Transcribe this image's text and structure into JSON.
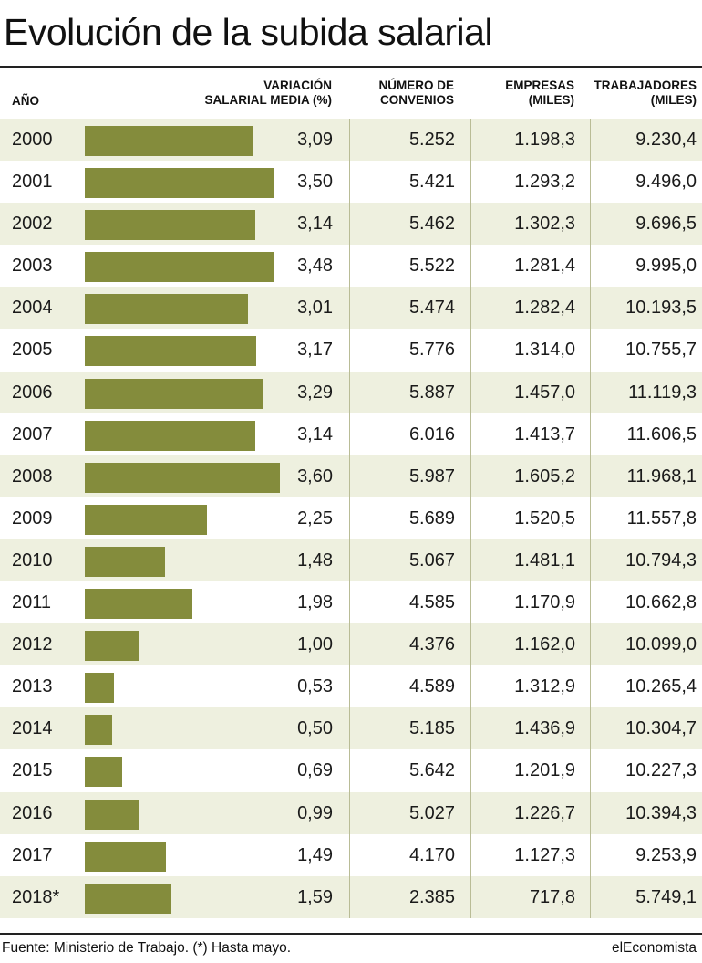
{
  "title": "Evolución de la subida salarial",
  "headers": {
    "year": "AÑO",
    "variation_line1": "VARIACIÓN",
    "variation_line2": "SALARIAL MEDIA (%)",
    "agreements_line1": "NÚMERO DE",
    "agreements_line2": "CONVENIOS",
    "companies_line1": "EMPRESAS",
    "companies_line2": "(MILES)",
    "workers_line1": "TRABAJADORES",
    "workers_line2": "(MILES)"
  },
  "colors": {
    "bar": "#848c3c",
    "row_shade": "#eef0df"
  },
  "chart_data": {
    "type": "table",
    "bar_column": "VARIACIÓN SALARIAL MEDIA (%)",
    "bar_max": 3.6,
    "rows": [
      {
        "year": "2000",
        "value": 3.09,
        "variation": "3,09",
        "agreements": "5.252",
        "companies": "1.198,3",
        "workers": "9.230,4"
      },
      {
        "year": "2001",
        "value": 3.5,
        "variation": "3,50",
        "agreements": "5.421",
        "companies": "1.293,2",
        "workers": "9.496,0"
      },
      {
        "year": "2002",
        "value": 3.14,
        "variation": "3,14",
        "agreements": "5.462",
        "companies": "1.302,3",
        "workers": "9.696,5"
      },
      {
        "year": "2003",
        "value": 3.48,
        "variation": "3,48",
        "agreements": "5.522",
        "companies": "1.281,4",
        "workers": "9.995,0"
      },
      {
        "year": "2004",
        "value": 3.01,
        "variation": "3,01",
        "agreements": "5.474",
        "companies": "1.282,4",
        "workers": "10.193,5"
      },
      {
        "year": "2005",
        "value": 3.17,
        "variation": "3,17",
        "agreements": "5.776",
        "companies": "1.314,0",
        "workers": "10.755,7"
      },
      {
        "year": "2006",
        "value": 3.29,
        "variation": "3,29",
        "agreements": "5.887",
        "companies": "1.457,0",
        "workers": "11.119,3"
      },
      {
        "year": "2007",
        "value": 3.14,
        "variation": "3,14",
        "agreements": "6.016",
        "companies": "1.413,7",
        "workers": "11.606,5"
      },
      {
        "year": "2008",
        "value": 3.6,
        "variation": "3,60",
        "agreements": "5.987",
        "companies": "1.605,2",
        "workers": "11.968,1"
      },
      {
        "year": "2009",
        "value": 2.25,
        "variation": "2,25",
        "agreements": "5.689",
        "companies": "1.520,5",
        "workers": "11.557,8"
      },
      {
        "year": "2010",
        "value": 1.48,
        "variation": "1,48",
        "agreements": "5.067",
        "companies": "1.481,1",
        "workers": "10.794,3"
      },
      {
        "year": "2011",
        "value": 1.98,
        "variation": "1,98",
        "agreements": "4.585",
        "companies": "1.170,9",
        "workers": "10.662,8"
      },
      {
        "year": "2012",
        "value": 1.0,
        "variation": "1,00",
        "agreements": "4.376",
        "companies": "1.162,0",
        "workers": "10.099,0"
      },
      {
        "year": "2013",
        "value": 0.53,
        "variation": "0,53",
        "agreements": "4.589",
        "companies": "1.312,9",
        "workers": "10.265,4"
      },
      {
        "year": "2014",
        "value": 0.5,
        "variation": "0,50",
        "agreements": "5.185",
        "companies": "1.436,9",
        "workers": "10.304,7"
      },
      {
        "year": "2015",
        "value": 0.69,
        "variation": "0,69",
        "agreements": "5.642",
        "companies": "1.201,9",
        "workers": "10.227,3"
      },
      {
        "year": "2016",
        "value": 0.99,
        "variation": "0,99",
        "agreements": "5.027",
        "companies": "1.226,7",
        "workers": "10.394,3"
      },
      {
        "year": "2017",
        "value": 1.49,
        "variation": "1,49",
        "agreements": "4.170",
        "companies": "1.127,3",
        "workers": "9.253,9"
      },
      {
        "year": "2018*",
        "value": 1.59,
        "variation": "1,59",
        "agreements": "2.385",
        "companies": "717,8",
        "workers": "5.749,1"
      }
    ]
  },
  "footer": {
    "source": "Fuente: Ministerio de Trabajo. (*) Hasta mayo.",
    "brand": "elEconomista"
  }
}
